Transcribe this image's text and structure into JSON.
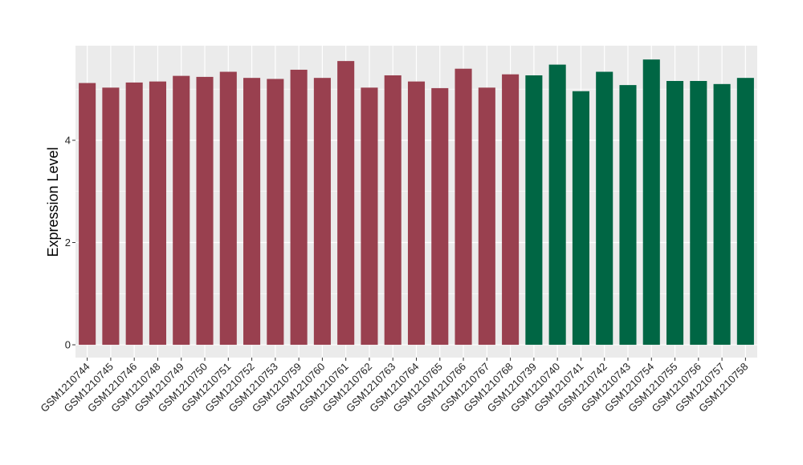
{
  "chart_data": {
    "type": "bar",
    "title": "",
    "xlabel": "",
    "ylabel": "Expression Level",
    "ylim": [
      -0.25,
      5.85
    ],
    "yticks": [
      0,
      2,
      4
    ],
    "grid": true,
    "legend": "none",
    "background_color": "#ebebeb",
    "gridline_color": "#ffffff",
    "categories": [
      "GSM1210744",
      "GSM1210745",
      "GSM1210746",
      "GSM1210748",
      "GSM1210749",
      "GSM1210750",
      "GSM1210751",
      "GSM1210752",
      "GSM1210753",
      "GSM1210759",
      "GSM1210760",
      "GSM1210761",
      "GSM1210762",
      "GSM1210763",
      "GSM1210764",
      "GSM1210765",
      "GSM1210766",
      "GSM1210767",
      "GSM1210768",
      "GSM1210739",
      "GSM1210740",
      "GSM1210741",
      "GSM1210742",
      "GSM1210743",
      "GSM1210754",
      "GSM1210755",
      "GSM1210756",
      "GSM1210757",
      "GSM1210758"
    ],
    "values": [
      5.12,
      5.03,
      5.13,
      5.15,
      5.26,
      5.24,
      5.34,
      5.22,
      5.2,
      5.38,
      5.22,
      5.55,
      5.03,
      5.27,
      5.15,
      5.02,
      5.4,
      5.03,
      5.29,
      5.27,
      5.48,
      4.96,
      5.34,
      5.08,
      5.58,
      5.16,
      5.16,
      5.1,
      5.22
    ],
    "colors": [
      "#99404f",
      "#99404f",
      "#99404f",
      "#99404f",
      "#99404f",
      "#99404f",
      "#99404f",
      "#99404f",
      "#99404f",
      "#99404f",
      "#99404f",
      "#99404f",
      "#99404f",
      "#99404f",
      "#99404f",
      "#99404f",
      "#99404f",
      "#99404f",
      "#99404f",
      "#006644",
      "#006644",
      "#006644",
      "#006644",
      "#006644",
      "#006644",
      "#006644",
      "#006644",
      "#006644",
      "#006644"
    ]
  }
}
